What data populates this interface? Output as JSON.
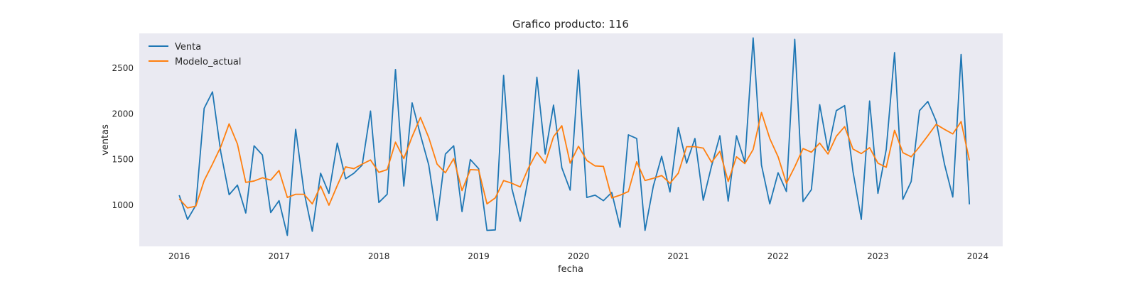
{
  "chart_data": {
    "type": "line",
    "title": "Grafico producto: 116",
    "xlabel": "fecha",
    "ylabel": "ventas",
    "x_start": "2016-01",
    "x_step": "month",
    "xlim": [
      2015.6,
      2024.25
    ],
    "ylim": [
      550,
      2880
    ],
    "xticks": [
      2016,
      2017,
      2018,
      2019,
      2020,
      2021,
      2022,
      2023,
      2024
    ],
    "yticks": [
      1000,
      1500,
      2000,
      2500
    ],
    "grid": false,
    "background": "#eaeaf2",
    "legend_position": "top-left",
    "series": [
      {
        "name": "Venta",
        "color": "#1f77b4",
        "values": [
          1110,
          845,
          1000,
          2060,
          2240,
          1580,
          1115,
          1220,
          915,
          1650,
          1550,
          920,
          1050,
          670,
          1830,
          1150,
          715,
          1350,
          1130,
          1680,
          1290,
          1350,
          1440,
          2030,
          1030,
          1120,
          2485,
          1210,
          2120,
          1770,
          1440,
          835,
          1560,
          1650,
          930,
          1500,
          1400,
          725,
          730,
          2420,
          1180,
          825,
          1310,
          2400,
          1560,
          2095,
          1410,
          1165,
          2480,
          1085,
          1110,
          1050,
          1140,
          760,
          1770,
          1730,
          725,
          1210,
          1535,
          1145,
          1850,
          1460,
          1730,
          1055,
          1430,
          1760,
          1045,
          1760,
          1470,
          2830,
          1440,
          1015,
          1355,
          1150,
          2815,
          1040,
          1170,
          2100,
          1600,
          2035,
          2090,
          1370,
          845,
          2140,
          1130,
          1610,
          2670,
          1065,
          1260,
          2035,
          2135,
          1920,
          1450,
          1090,
          2650,
          1010
        ]
      },
      {
        "name": "Modelo_actual",
        "color": "#ff7f0e",
        "values": [
          1070,
          970,
          990,
          1270,
          1450,
          1640,
          1890,
          1670,
          1250,
          1265,
          1300,
          1275,
          1380,
          1085,
          1120,
          1120,
          1015,
          1210,
          1000,
          1215,
          1420,
          1400,
          1450,
          1495,
          1360,
          1390,
          1690,
          1510,
          1750,
          1960,
          1740,
          1450,
          1355,
          1510,
          1160,
          1390,
          1385,
          1015,
          1080,
          1270,
          1240,
          1200,
          1410,
          1580,
          1460,
          1750,
          1870,
          1460,
          1645,
          1490,
          1430,
          1425,
          1080,
          1110,
          1150,
          1475,
          1270,
          1295,
          1325,
          1240,
          1350,
          1640,
          1640,
          1625,
          1470,
          1590,
          1260,
          1530,
          1455,
          1610,
          2015,
          1730,
          1530,
          1240,
          1420,
          1620,
          1580,
          1680,
          1560,
          1755,
          1860,
          1615,
          1565,
          1630,
          1460,
          1415,
          1820,
          1575,
          1530,
          1640,
          1760,
          1885,
          1830,
          1780,
          1915,
          1490
        ]
      }
    ]
  }
}
